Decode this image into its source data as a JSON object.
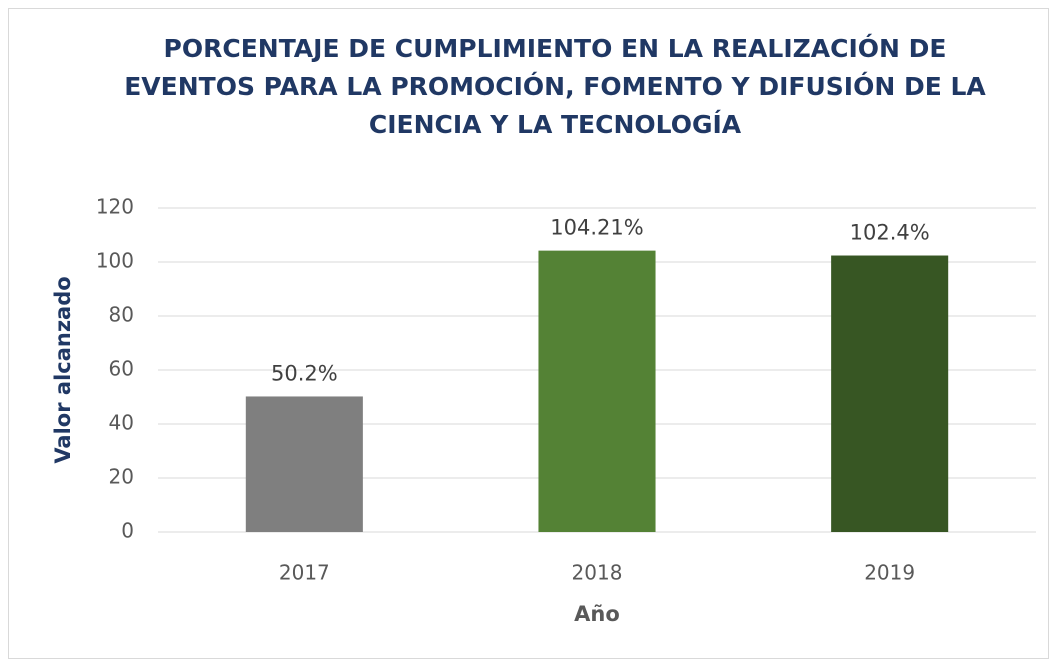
{
  "chart_data": {
    "type": "bar",
    "title": [
      "PORCENTAJE DE CUMPLIMIENTO EN LA REALIZACIÓN DE",
      "EVENTOS PARA LA PROMOCIÓN, FOMENTO Y DIFUSIÓN DE LA",
      "CIENCIA Y LA TECNOLOGÍA"
    ],
    "x_label": "Año",
    "y_label": "Valor alcanzado",
    "categories": [
      "2017",
      "2018",
      "2019"
    ],
    "values": [
      50.2,
      104.21,
      102.4
    ],
    "value_labels": [
      "50.2%",
      "104.21%",
      "102.4%"
    ],
    "colors": [
      "#7f7f7f",
      "#548235",
      "#375623"
    ],
    "ylim": [
      0,
      120
    ],
    "yticks": [
      0,
      20,
      40,
      60,
      80,
      100,
      120
    ],
    "grid": true
  }
}
